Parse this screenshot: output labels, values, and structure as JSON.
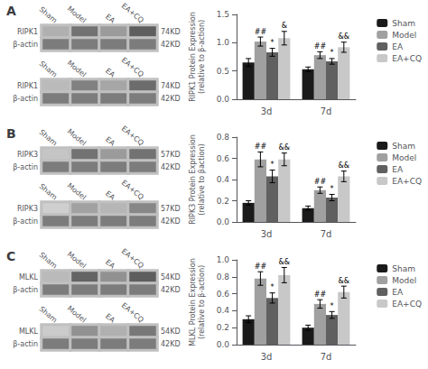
{
  "chart_data": [
    {
      "type": "heatmap",
      "title": "A",
      "categories": [
        "Sham",
        "Model",
        "EA",
        "EA+CQ"
      ],
      "y_categories": [
        "RIPK1",
        "β-actin"
      ],
      "y2_categories": [
        "74KD",
        "42KD"
      ],
      "values": [
        [
          0.35,
          0.65,
          0.45,
          0.75
        ],
        [
          0.6,
          0.6,
          0.6,
          0.6
        ]
      ],
      "clim": [
        0,
        1
      ]
    },
    {
      "type": "heatmap",
      "categories": [
        "Sham",
        "Model",
        "EA",
        "EA+CQ"
      ],
      "y_categories": [
        "RIPK1",
        "β-actin"
      ],
      "y2_categories": [
        "74KD",
        "42KD"
      ],
      "values": [
        [
          0.3,
          0.58,
          0.4,
          0.68
        ],
        [
          0.6,
          0.6,
          0.6,
          0.6
        ]
      ],
      "clim": [
        0,
        1
      ]
    },
    {
      "type": "bar",
      "categories": [
        "3d",
        "7d"
      ],
      "ylabel": "RIPK1 Protein Expression\n(relative to β-action)",
      "ylim": [
        0,
        1.5
      ],
      "yticks": [
        {
          "value": 0,
          "label": "0.0"
        },
        0.5,
        {
          "value": 1,
          "label": "1.0"
        },
        1.5
      ],
      "grid": false,
      "legend": "upper right",
      "series": [
        {
          "name": "Sham",
          "color": "#1a1a1a",
          "values": [
            0.65,
            0.53
          ],
          "errors": [
            0.07,
            0.04
          ]
        },
        {
          "name": "Model",
          "color": "#a0a0a0",
          "values": [
            1.02,
            0.78
          ],
          "errors": [
            0.08,
            0.06
          ],
          "annotations": [
            "##",
            "##"
          ]
        },
        {
          "name": "EA",
          "color": "#606060",
          "values": [
            0.83,
            0.67
          ],
          "errors": [
            0.07,
            0.05
          ],
          "annotations": [
            "*",
            "*"
          ]
        },
        {
          "name": "EA+CQ",
          "color": "#c8c8c8",
          "values": [
            1.08,
            0.92
          ],
          "errors": [
            0.12,
            0.09
          ],
          "annotations": [
            "&",
            "&&"
          ]
        }
      ]
    },
    {
      "type": "heatmap",
      "title": "B",
      "categories": [
        "Sham",
        "Model",
        "EA",
        "EA+CQ"
      ],
      "y_categories": [
        "RIPK3",
        "β-actin"
      ],
      "y2_categories": [
        "57KD",
        "42KD"
      ],
      "values": [
        [
          0.25,
          0.65,
          0.45,
          0.65
        ],
        [
          0.6,
          0.6,
          0.6,
          0.6
        ]
      ],
      "clim": [
        0,
        1
      ]
    },
    {
      "type": "heatmap",
      "categories": [
        "Sham",
        "Model",
        "EA",
        "EA+CQ"
      ],
      "y_categories": [
        "RIPK3",
        "β-actin"
      ],
      "y2_categories": [
        "57KD",
        "42KD"
      ],
      "values": [
        [
          0.2,
          0.42,
          0.32,
          0.55
        ],
        [
          0.6,
          0.6,
          0.6,
          0.6
        ]
      ],
      "clim": [
        0,
        1
      ]
    },
    {
      "type": "bar",
      "categories": [
        "3d",
        "7d"
      ],
      "ylabel": "RIPK3 Protein Expression\n(relative to βaction)",
      "ylim": [
        0,
        0.8
      ],
      "yticks": [
        {
          "value": 0,
          "label": "0.0"
        },
        0.2,
        0.4,
        0.6,
        0.8
      ],
      "grid": false,
      "legend": "upper right",
      "series": [
        {
          "name": "Sham",
          "color": "#1a1a1a",
          "values": [
            0.18,
            0.13
          ],
          "errors": [
            0.02,
            0.02
          ]
        },
        {
          "name": "Model",
          "color": "#a0a0a0",
          "values": [
            0.59,
            0.3
          ],
          "errors": [
            0.07,
            0.03
          ],
          "annotations": [
            "##",
            "##"
          ]
        },
        {
          "name": "EA",
          "color": "#606060",
          "values": [
            0.43,
            0.23
          ],
          "errors": [
            0.06,
            0.03
          ],
          "annotations": [
            "*",
            "*"
          ]
        },
        {
          "name": "EA+CQ",
          "color": "#c8c8c8",
          "values": [
            0.59,
            0.43
          ],
          "errors": [
            0.06,
            0.05
          ],
          "annotations": [
            "&&",
            "&&"
          ]
        }
      ]
    },
    {
      "type": "heatmap",
      "title": "C",
      "categories": [
        "Sham",
        "Model",
        "EA",
        "EA+CQ"
      ],
      "y_categories": [
        "MLKL",
        "β-actin"
      ],
      "y2_categories": [
        "54KD",
        "42KD"
      ],
      "values": [
        [
          0.3,
          0.72,
          0.5,
          0.75
        ],
        [
          0.6,
          0.6,
          0.6,
          0.6
        ]
      ],
      "clim": [
        0,
        1
      ]
    },
    {
      "type": "heatmap",
      "categories": [
        "Sham",
        "Model",
        "EA",
        "EA+CQ"
      ],
      "y_categories": [
        "MLKL",
        "β-actin"
      ],
      "y2_categories": [
        "54KD",
        "42KD"
      ],
      "values": [
        [
          0.22,
          0.5,
          0.35,
          0.62
        ],
        [
          0.6,
          0.6,
          0.6,
          0.6
        ]
      ],
      "clim": [
        0,
        1
      ]
    },
    {
      "type": "bar",
      "categories": [
        "3d",
        "7d"
      ],
      "ylabel": "MLKL Protein Expression\n(relative to β-action)",
      "ylim": [
        0,
        1
      ],
      "yticks": [
        {
          "value": 0,
          "label": "0.0"
        },
        0.2,
        0.4,
        0.6,
        0.8,
        {
          "value": 1,
          "label": "1.0"
        }
      ],
      "grid": false,
      "legend": "upper right",
      "series": [
        {
          "name": "Sham",
          "color": "#1a1a1a",
          "values": [
            0.3,
            0.2
          ],
          "errors": [
            0.04,
            0.03
          ]
        },
        {
          "name": "Model",
          "color": "#a0a0a0",
          "values": [
            0.78,
            0.48
          ],
          "errors": [
            0.08,
            0.05
          ],
          "annotations": [
            "##",
            "##"
          ]
        },
        {
          "name": "EA",
          "color": "#606060",
          "values": [
            0.55,
            0.35
          ],
          "errors": [
            0.06,
            0.04
          ],
          "annotations": [
            "*",
            "*"
          ]
        },
        {
          "name": "EA+CQ",
          "color": "#c8c8c8",
          "values": [
            0.82,
            0.62
          ],
          "errors": [
            0.09,
            0.07
          ],
          "annotations": [
            "&&",
            "&&"
          ]
        }
      ]
    }
  ]
}
